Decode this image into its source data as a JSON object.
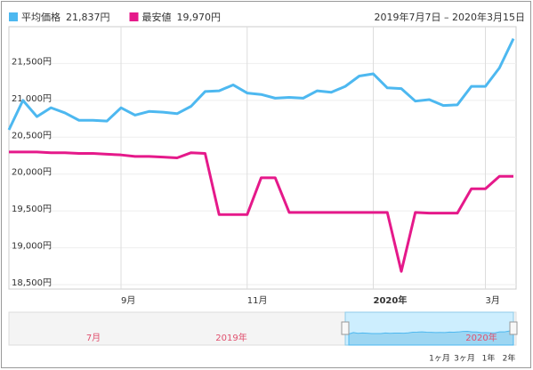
{
  "chart_data": {
    "type": "line",
    "subtitle": "2019年7月7日 – 2020年3月15日",
    "categories": [
      null,
      null,
      null,
      null,
      null,
      null,
      null,
      null,
      "9月",
      null,
      null,
      null,
      null,
      null,
      null,
      null,
      null,
      "11月",
      null,
      null,
      null,
      null,
      null,
      null,
      null,
      null,
      "2020年",
      null,
      null,
      null,
      null,
      null,
      null,
      null,
      "3月",
      null,
      null
    ],
    "series": [
      {
        "name": "平均価格",
        "latest_label": "21,837円",
        "color": "#4db8f0",
        "values": [
          20600,
          21000,
          20780,
          20900,
          20830,
          20730,
          20730,
          20720,
          20900,
          20800,
          20850,
          20840,
          20820,
          20920,
          21120,
          21130,
          21210,
          21100,
          21080,
          21030,
          21040,
          21030,
          21130,
          21110,
          21190,
          21330,
          21360,
          21170,
          21160,
          20990,
          21010,
          20930,
          20940,
          21190,
          21190,
          21440,
          21837
        ]
      },
      {
        "name": "最安値",
        "latest_label": "19,970円",
        "color": "#e5198a",
        "values": [
          20300,
          20300,
          20300,
          20290,
          20290,
          20280,
          20280,
          20270,
          20260,
          20240,
          20240,
          20230,
          20220,
          20290,
          20280,
          19450,
          19450,
          19450,
          19950,
          19950,
          19480,
          19480,
          19480,
          19480,
          19480,
          19480,
          19480,
          19480,
          18680,
          19480,
          19470,
          19470,
          19470,
          19800,
          19800,
          19970,
          19970
        ]
      }
    ],
    "ylim": [
      18440,
      22000
    ],
    "yticks": [
      {
        "value": 18500,
        "label": "18,500円"
      },
      {
        "value": 19000,
        "label": "19,000円"
      },
      {
        "value": 19500,
        "label": "19,500円"
      },
      {
        "value": 20000,
        "label": "20,000円"
      },
      {
        "value": 20500,
        "label": "20,500円"
      },
      {
        "value": 21000,
        "label": "21,000円"
      },
      {
        "value": 21500,
        "label": "21,500円"
      }
    ],
    "grid": true,
    "bold_category": "2020年",
    "navigator_labels": [
      "7月",
      "2019年",
      "2020年"
    ],
    "range_buttons": [
      "1ヶ月",
      "3ヶ月",
      "1年",
      "2年"
    ]
  }
}
